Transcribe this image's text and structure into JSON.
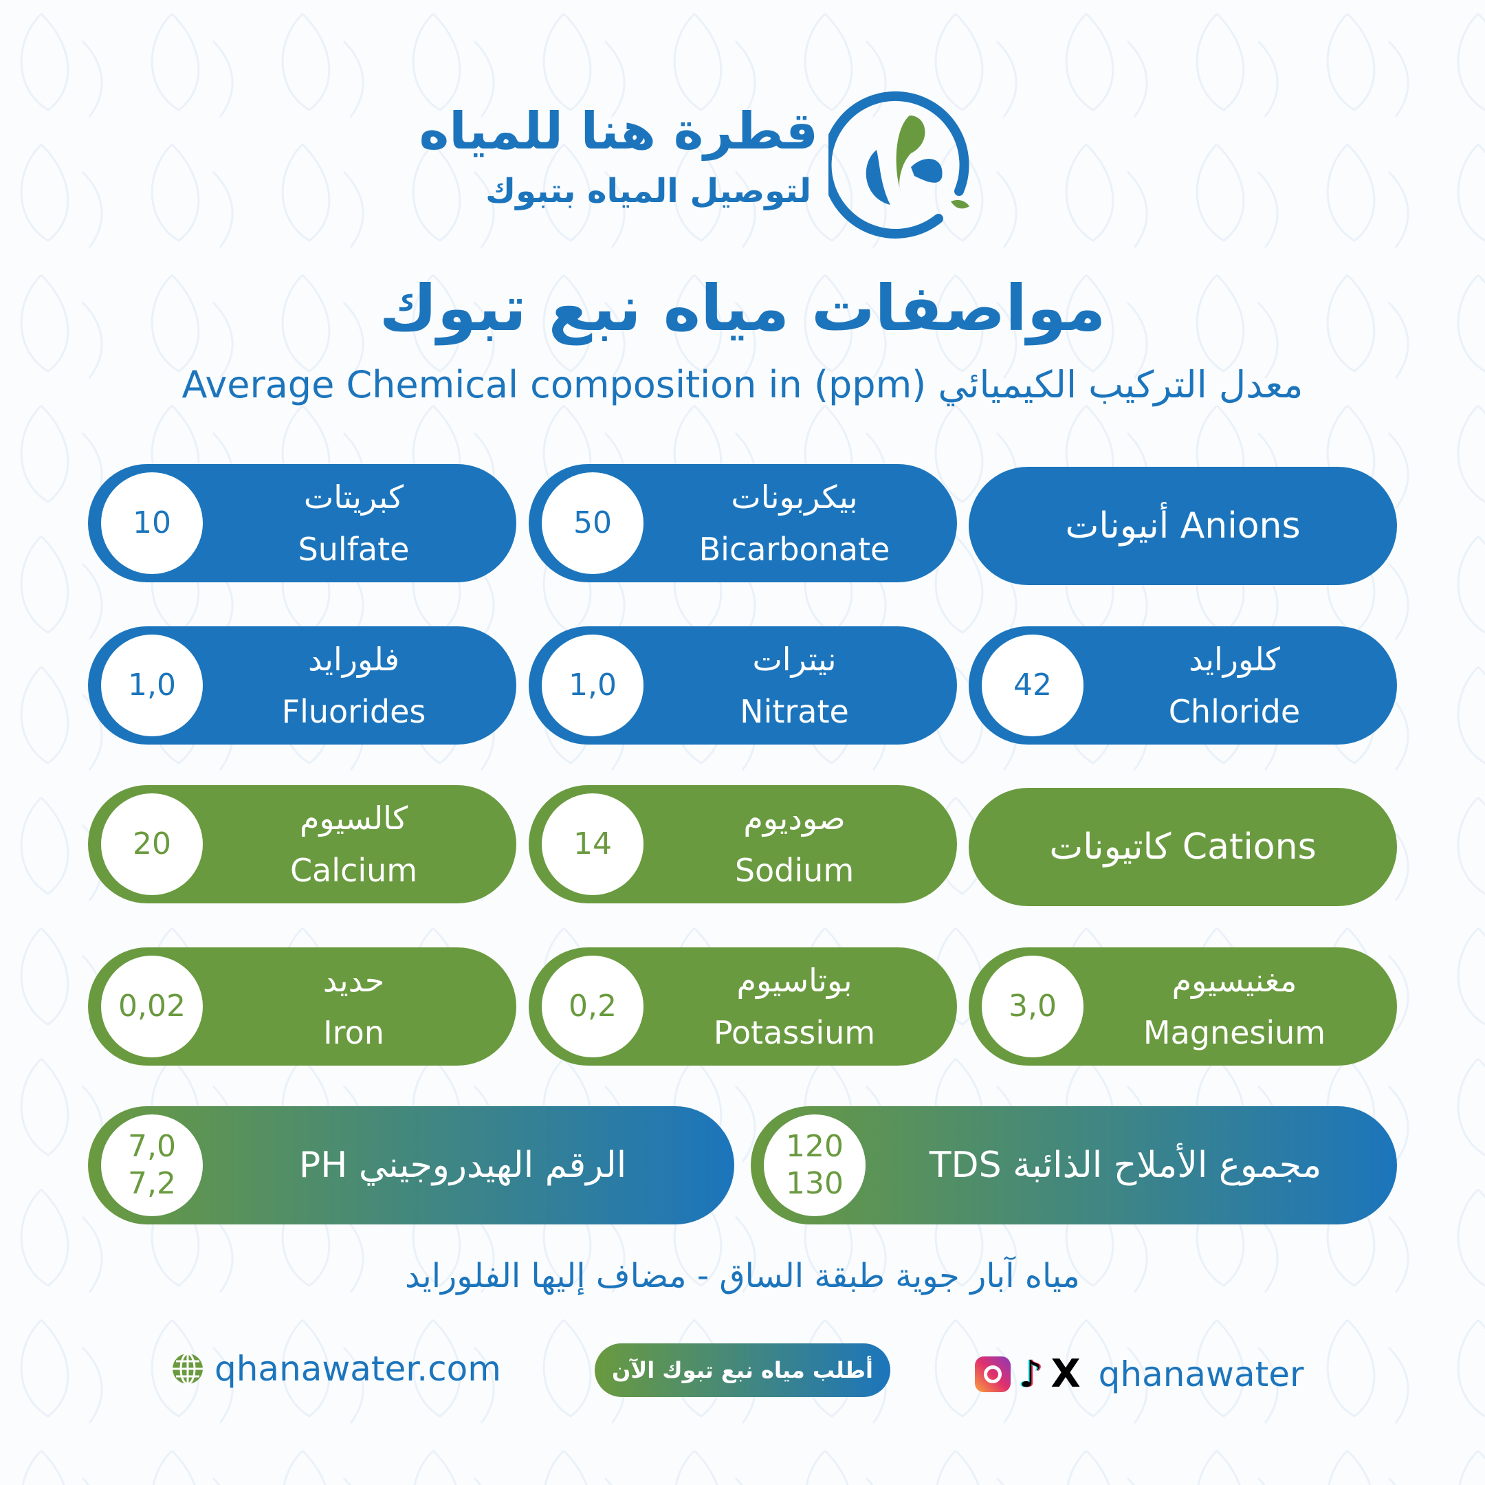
{
  "brand": {
    "name_ar": "قطرة هنا للمياه",
    "tagline_ar": "لتوصيل المياه بتبوك"
  },
  "title": "مواصفات مياه نبع تبوك",
  "subtitle": "Average Chemical composition in (ppm) معدل التركيب الكيميائي",
  "colors": {
    "blue": "#1c75bc",
    "green": "#6a9a3f"
  },
  "anions_header": "Anions أنيونات",
  "cations_header": "Cations كاتيونات",
  "anions": [
    {
      "ar": "بيكربونات",
      "en": "Bicarbonate",
      "value": "50"
    },
    {
      "ar": "كبريتات",
      "en": "Sulfate",
      "value": "10"
    },
    {
      "ar": "كلورايد",
      "en": "Chloride",
      "value": "42"
    },
    {
      "ar": "نيترات",
      "en": "Nitrate",
      "value": "1,0"
    },
    {
      "ar": "فلورايد",
      "en": "Fluorides",
      "value": "1,0"
    }
  ],
  "cations": [
    {
      "ar": "صوديوم",
      "en": "Sodium",
      "value": "14"
    },
    {
      "ar": "كالسيوم",
      "en": "Calcium",
      "value": "20"
    },
    {
      "ar": "مغنيسيوم",
      "en": "Magnesium",
      "value": "3,0"
    },
    {
      "ar": "بوتاسيوم",
      "en": "Potassium",
      "value": "0,2"
    },
    {
      "ar": "حديد",
      "en": "Iron",
      "value": "0,02"
    }
  ],
  "tds": {
    "label": "مجموع الأملاح الذائبة TDS",
    "min": "120",
    "max": "130"
  },
  "ph": {
    "label": "الرقم الهيدروجيني PH",
    "min": "7,0",
    "max": "7,2"
  },
  "note": "مياه آبار جوية طبقة الساق - مضاف إليها الفلورايد",
  "footer": {
    "website": "qhanawater.com",
    "order_button": "أطلب مياه نبع تبوك الآن",
    "social_handle": "qhanawater",
    "icons": [
      "globe-icon",
      "instagram-icon",
      "tiktok-icon",
      "x-icon"
    ]
  }
}
